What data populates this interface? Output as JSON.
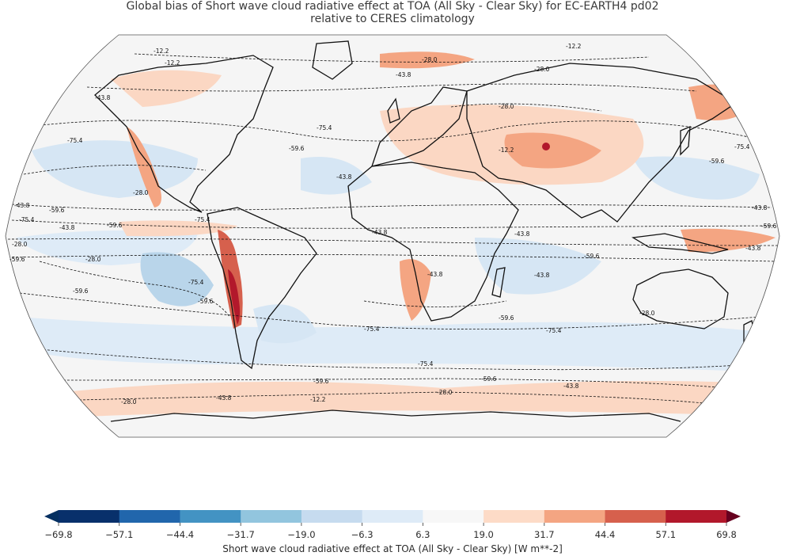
{
  "title": {
    "line1": "Global bias of Short wave cloud radiative effect at TOA (All Sky - Clear Sky) for EC-EARTH4 pd02",
    "line2": "relative to CERES climatology"
  },
  "contour_labels": {
    "-12.2": "-12.2",
    "-28.0": "-28.0",
    "-43.8": "-43.8",
    "-59.6": "-59.6",
    "-75.4": "-75.4"
  },
  "colorbar": {
    "label": "Short wave cloud radiative effect at TOA (All Sky - Clear Sky) [W m**-2]",
    "ticks": [
      "−69.8",
      "−57.1",
      "−44.4",
      "−31.7",
      "−19.0",
      "−6.3",
      "6.3",
      "19.0",
      "31.7",
      "44.4",
      "57.1",
      "69.8"
    ],
    "colors": [
      "#08306b",
      "#2166ac",
      "#4393c3",
      "#92c5de",
      "#c6dbef",
      "#deebf7",
      "#f7f7f7",
      "#fddbc7",
      "#f4a582",
      "#d6604d",
      "#b2182b",
      "#67001f"
    ],
    "extend_low_color": "#053061",
    "extend_high_color": "#67001f"
  },
  "map": {
    "projection": "Robinson",
    "background_color": "#f5f5f5",
    "ocean_tint": "#d3e4f2"
  }
}
